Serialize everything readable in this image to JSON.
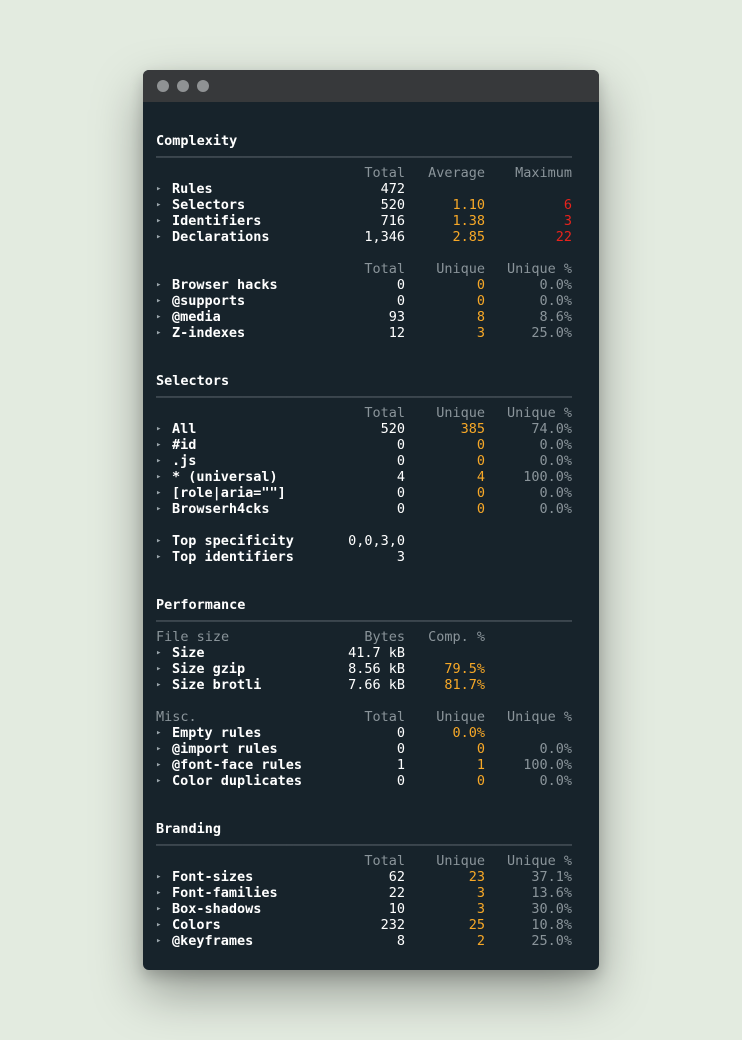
{
  "window": {
    "controls": [
      "close",
      "minimize",
      "maximize"
    ]
  },
  "sections": {
    "complexity": {
      "title": "Complexity",
      "divider": "────────────────────────────────────────────────────────────",
      "headers1": [
        "Total",
        "Average",
        "Maximum"
      ],
      "rows1": [
        {
          "label": "Rules",
          "c1": "472",
          "c2": "",
          "c3": ""
        },
        {
          "label": "Selectors",
          "c1": "520",
          "c2": "1.10",
          "c3": "6"
        },
        {
          "label": "Identifiers",
          "c1": "716",
          "c2": "1.38",
          "c3": "3"
        },
        {
          "label": "Declarations",
          "c1": "1,346",
          "c2": "2.85",
          "c3": "22"
        }
      ],
      "headers2": [
        "Total",
        "Unique",
        "Unique %"
      ],
      "rows2": [
        {
          "label": "Browser hacks",
          "c1": "0",
          "c2": "0",
          "c3": "0.0%"
        },
        {
          "label": "@supports",
          "c1": "0",
          "c2": "0",
          "c3": "0.0%"
        },
        {
          "label": "@media",
          "c1": "93",
          "c2": "8",
          "c3": "8.6%"
        },
        {
          "label": "Z-indexes",
          "c1": "12",
          "c2": "3",
          "c3": "25.0%"
        }
      ]
    },
    "selectors": {
      "title": "Selectors",
      "divider": "────────────────────────────────────────────────────────────",
      "headers1": [
        "Total",
        "Unique",
        "Unique %"
      ],
      "rows1": [
        {
          "label": "All",
          "c1": "520",
          "c2": "385",
          "c3": "74.0%"
        },
        {
          "label": "#id",
          "c1": "0",
          "c2": "0",
          "c3": "0.0%"
        },
        {
          "label": ".js",
          "c1": "0",
          "c2": "0",
          "c3": "0.0%"
        },
        {
          "label": "* (universal)",
          "c1": "4",
          "c2": "4",
          "c3": "100.0%"
        },
        {
          "label": "[role|aria=\"\"]",
          "c1": "0",
          "c2": "0",
          "c3": "0.0%"
        },
        {
          "label": "Browserh4cks",
          "c1": "0",
          "c2": "0",
          "c3": "0.0%"
        }
      ],
      "rows2": [
        {
          "label": "Top specificity",
          "c1": "0,0,3,0"
        },
        {
          "label": "Top identifiers",
          "c1": "3"
        }
      ]
    },
    "performance": {
      "title": "Performance",
      "divider": "────────────────────────────────────────────────────────────",
      "label1": "File size",
      "headers1": [
        "Bytes",
        "Comp. %"
      ],
      "rows1": [
        {
          "label": "Size",
          "c1": "41.7 kB",
          "c2": ""
        },
        {
          "label": "Size gzip",
          "c1": "8.56 kB",
          "c2": "79.5%"
        },
        {
          "label": "Size brotli",
          "c1": "7.66 kB",
          "c2": "81.7%"
        }
      ],
      "label2": "Misc.",
      "headers2": [
        "Total",
        "Unique",
        "Unique %"
      ],
      "rows2": [
        {
          "label": "Empty rules",
          "c1": "0",
          "c2": "0.0%",
          "c3": ""
        },
        {
          "label": "@import rules",
          "c1": "0",
          "c2": "0",
          "c3": "0.0%"
        },
        {
          "label": "@font-face rules",
          "c1": "1",
          "c2": "1",
          "c3": "100.0%"
        },
        {
          "label": "Color duplicates",
          "c1": "0",
          "c2": "0",
          "c3": "0.0%"
        }
      ]
    },
    "branding": {
      "title": "Branding",
      "divider": "────────────────────────────────────────────────────────────",
      "headers1": [
        "Total",
        "Unique",
        "Unique %"
      ],
      "rows1": [
        {
          "label": "Font-sizes",
          "c1": "62",
          "c2": "23",
          "c3": "37.1%"
        },
        {
          "label": "Font-families",
          "c1": "22",
          "c2": "3",
          "c3": "13.6%"
        },
        {
          "label": "Box-shadows",
          "c1": "10",
          "c2": "3",
          "c3": "30.0%"
        },
        {
          "label": "Colors",
          "c1": "232",
          "c2": "25",
          "c3": "10.8%"
        },
        {
          "label": "@keyframes",
          "c1": "8",
          "c2": "2",
          "c3": "25.0%"
        }
      ]
    }
  },
  "colors": {
    "accent": "#f7a827",
    "alert": "#e8231c",
    "muted": "#8a949a",
    "background": "#17232b"
  },
  "icons": {
    "row_marker": "triangle-right-icon"
  }
}
